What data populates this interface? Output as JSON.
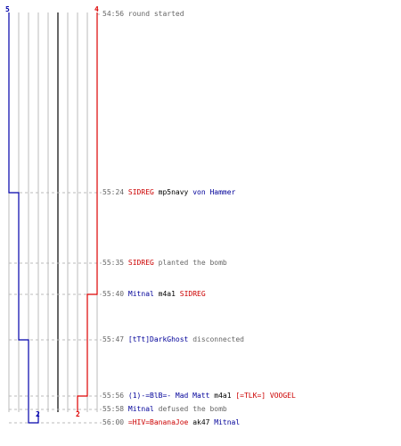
{
  "colors": {
    "team_blue": "#0000aa",
    "team_red": "#dd0000",
    "grid": "#bbbbbb",
    "center": "#666666",
    "dash": "#bbbbbb",
    "timestamp": "#666666",
    "action": "#666666"
  },
  "counts": {
    "blue_start": "5",
    "red_start": "4",
    "blue_end": "2",
    "red_end": "2"
  },
  "events": [
    {
      "time": "54:56",
      "parts": [
        {
          "text": "round started",
          "kind": "action"
        }
      ]
    },
    {
      "time": "55:24",
      "parts": [
        {
          "text": "SIDREG",
          "kind": "red"
        },
        {
          "text": "mp5navy",
          "kind": "weapon"
        },
        {
          "text": "von Hammer",
          "kind": "blue"
        }
      ]
    },
    {
      "time": "55:35",
      "parts": [
        {
          "text": "SIDREG",
          "kind": "red"
        },
        {
          "text": "planted the bomb",
          "kind": "action"
        }
      ]
    },
    {
      "time": "55:40",
      "parts": [
        {
          "text": "Mitnal",
          "kind": "blue"
        },
        {
          "text": "m4a1",
          "kind": "weapon"
        },
        {
          "text": "SIDREG",
          "kind": "red"
        }
      ]
    },
    {
      "time": "55:47",
      "parts": [
        {
          "text": "[tTt]DarkGhost",
          "kind": "blue"
        },
        {
          "text": "disconnected",
          "kind": "action"
        }
      ]
    },
    {
      "time": "55:56",
      "parts": [
        {
          "text": "(1)-=BlB=- Mad Matt",
          "kind": "blue"
        },
        {
          "text": "m4a1",
          "kind": "weapon"
        },
        {
          "text": "[=TLK=] VOOGEL",
          "kind": "red"
        }
      ]
    },
    {
      "time": "55:58",
      "parts": [
        {
          "text": "Mitnal",
          "kind": "blue"
        },
        {
          "text": "defused the bomb",
          "kind": "action"
        }
      ]
    },
    {
      "time": "56:00",
      "parts": [
        {
          "text": "=HIV=BananaJoe",
          "kind": "red"
        },
        {
          "text": "ak47",
          "kind": "weapon"
        },
        {
          "text": "Mitnal",
          "kind": "blue"
        }
      ]
    }
  ]
}
